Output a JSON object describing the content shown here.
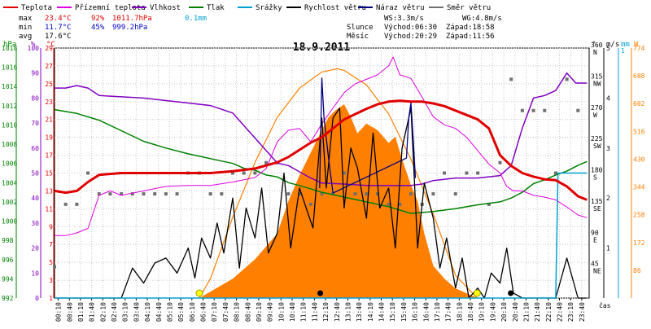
{
  "legend": [
    {
      "label": "Teplota",
      "color": "#e00000"
    },
    {
      "label": "Přízemní teplota",
      "color": "#e000e0"
    },
    {
      "label": "Vlhkost",
      "color": "#8000c0"
    },
    {
      "label": "Tlak",
      "color": "#008000"
    },
    {
      "label": "Srážky",
      "color": "#00a0d0"
    },
    {
      "label": "Rychlost větru",
      "color": "#000000"
    },
    {
      "label": "Náraz větru",
      "color": "#000080"
    },
    {
      "label": "Směr větru",
      "color": "#707070"
    }
  ],
  "stats": {
    "max": {
      "label": "max",
      "temp": "23.4°C",
      "hum": "92%",
      "press": "1011.7hPa",
      "rain": "0.1mm"
    },
    "min": {
      "label": "min",
      "temp": "11.7°C",
      "hum": "45%",
      "press": "999.2hPa"
    },
    "avg": {
      "label": "avg",
      "temp": "17.6°C"
    }
  },
  "wind_info": {
    "ws": "WS:3.3m/s",
    "wg": "WG:4.8m/s"
  },
  "sun_info": {
    "label": "Slunce",
    "rise": "Východ:06:30",
    "set": "Západ:18:58"
  },
  "moon_info": {
    "label": "Měsíc",
    "rise": "Východ:20:29",
    "set": "Západ:11:56"
  },
  "colors": {
    "temp": "#e00000",
    "ground": "#e000e0",
    "hum": "#8000c0",
    "press": "#008000",
    "rain": "#00a0d0",
    "wind": "#000000",
    "gust": "#000080",
    "dir": "#707070",
    "solar": "#ff8000",
    "axis": "#000000"
  },
  "chart_data": {
    "type": "line",
    "title": "18.9.2011",
    "xlabel": "čas",
    "x_ticks": [
      "00:10",
      "00:40",
      "01:10",
      "01:40",
      "02:10",
      "02:40",
      "03:10",
      "03:40",
      "04:10",
      "04:40",
      "05:10",
      "05:40",
      "06:10",
      "06:40",
      "07:10",
      "07:40",
      "08:10",
      "08:40",
      "09:10",
      "09:40",
      "10:10",
      "10:40",
      "11:10",
      "11:40",
      "12:10",
      "12:40",
      "13:10",
      "13:40",
      "14:10",
      "14:40",
      "15:10",
      "15:40",
      "16:10",
      "16:40",
      "17:10",
      "17:40",
      "18:10",
      "18:40",
      "19:10",
      "19:40",
      "20:10",
      "20:40",
      "21:10",
      "21:40",
      "22:10",
      "22:40",
      "23:10",
      "23:40"
    ],
    "axes": {
      "pressure": {
        "unit": "hPa",
        "ticks": [
          "1018",
          "1016",
          "1014",
          "1012",
          "1010",
          "1008",
          "1006",
          "1004",
          "1002",
          "1000",
          "998",
          "996",
          "994",
          "992"
        ],
        "range": [
          992,
          1018
        ]
      },
      "humidity": {
        "unit": "%",
        "ticks": [
          "100",
          "90",
          "80",
          "70",
          "60",
          "50",
          "40",
          "30",
          "20",
          "10",
          "0"
        ],
        "range": [
          0,
          100
        ]
      },
      "temperature": {
        "unit": "°C",
        "ticks": [
          "29",
          "27",
          "25",
          "23",
          "21",
          "19",
          "17",
          "15",
          "13",
          "11",
          "9",
          "7",
          "5",
          "3",
          "1"
        ],
        "range": [
          1,
          29
        ]
      },
      "direction": {
        "unit": "°",
        "ticks": [
          {
            "deg": "360",
            "dir": "N"
          },
          {
            "deg": "315",
            "dir": "NW"
          },
          {
            "deg": "270",
            "dir": "W"
          },
          {
            "deg": "225",
            "dir": "SW"
          },
          {
            "deg": "180",
            "dir": "S"
          },
          {
            "deg": "135",
            "dir": "SE"
          },
          {
            "deg": "90",
            "dir": "E"
          },
          {
            "deg": "45",
            "dir": "NE"
          },
          {
            "deg": "0",
            "dir": ""
          }
        ],
        "range": [
          0,
          360
        ]
      },
      "wind": {
        "unit": "m/s",
        "ticks": [
          "5",
          "4",
          "3",
          "2",
          "1"
        ],
        "range": [
          0,
          5
        ]
      },
      "rain": {
        "unit": "mm",
        "ticks": [
          "1"
        ],
        "range": [
          0,
          1
        ]
      },
      "solar": {
        "unit": "W",
        "ticks": [
          "774",
          "688",
          "602",
          "516",
          "430",
          "344",
          "258",
          "172",
          "86"
        ],
        "range": [
          0,
          774
        ]
      }
    },
    "series": [
      {
        "name": "Teplota",
        "axis": "temperature",
        "x": [
          0,
          0.5,
          1,
          1.5,
          2,
          3,
          4,
          5,
          6,
          7,
          8,
          9,
          10,
          10.5,
          11,
          11.5,
          12,
          12.5,
          13,
          13.5,
          14,
          14.5,
          15,
          15.5,
          16,
          16.5,
          17,
          17.5,
          18,
          18.5,
          19,
          19.5,
          20,
          20.5,
          21,
          21.5,
          22,
          22.5,
          23,
          23.5,
          23.9
        ],
        "values": [
          13,
          12.8,
          13,
          14,
          14.8,
          15,
          15,
          15,
          15,
          15,
          15.2,
          15.5,
          16.2,
          16.8,
          17.6,
          18.4,
          19,
          20,
          21,
          21.6,
          22.2,
          22.7,
          23,
          23.1,
          23,
          23,
          22.8,
          22.5,
          22,
          21.5,
          21,
          20,
          17,
          15.8,
          15,
          14.6,
          14.3,
          14.2,
          13.5,
          12.4,
          12
        ]
      },
      {
        "name": "Přízemní teplota",
        "axis": "temperature",
        "x": [
          0,
          0.5,
          1,
          1.5,
          2,
          2.5,
          3,
          4,
          5,
          6,
          7,
          8,
          9,
          9.5,
          10,
          10.5,
          11,
          11.5,
          12,
          12.5,
          13,
          13.5,
          14,
          14.5,
          15,
          15.2,
          15.5,
          16,
          16.5,
          17,
          17.5,
          18,
          18.5,
          19,
          19.5,
          20,
          20.3,
          20.6,
          21,
          21.5,
          22,
          22.5,
          23,
          23.5,
          23.9
        ],
        "values": [
          8,
          8,
          8.3,
          8.8,
          12.5,
          13,
          12.5,
          13,
          13.5,
          13.6,
          13.6,
          14,
          14.5,
          15.5,
          18.5,
          19.8,
          20,
          18.5,
          20.5,
          22.3,
          24,
          25,
          25.5,
          26,
          27,
          28,
          26,
          25.6,
          23.5,
          21.3,
          20.4,
          20,
          19,
          17.5,
          16,
          15,
          13.5,
          13,
          13,
          12.5,
          12.3,
          12,
          11.2,
          10.3,
          10
        ]
      },
      {
        "name": "Vlhkost",
        "axis": "humidity",
        "x": [
          0,
          0.5,
          1,
          1.5,
          2,
          3,
          4,
          5,
          6,
          7,
          8,
          8.5,
          9,
          9.5,
          10,
          10.5,
          11,
          11.5,
          12,
          13,
          14,
          15,
          16,
          16.5,
          17,
          18,
          19,
          20,
          20.5,
          21,
          21.5,
          22,
          22.5,
          23,
          23.4,
          23.9
        ],
        "values": [
          84,
          84,
          85,
          84,
          81,
          80.5,
          80,
          79,
          78,
          77,
          74,
          69,
          64,
          59,
          54,
          53,
          50.5,
          48,
          46,
          45.6,
          45,
          45,
          45,
          45.6,
          47,
          48,
          48,
          49,
          53,
          68,
          80,
          81,
          83,
          90,
          86,
          86
        ]
      },
      {
        "name": "Tlak",
        "axis": "pressure",
        "x": [
          0,
          1,
          2,
          3,
          4,
          5,
          6,
          7,
          8,
          8.5,
          9,
          9.5,
          10,
          10.5,
          11,
          12,
          13,
          14,
          15,
          16,
          17,
          18,
          19,
          20,
          20.5,
          21,
          21.5,
          22,
          22.5,
          23,
          23.5,
          23.9
        ],
        "values": [
          1011.6,
          1011.2,
          1010.5,
          1009.4,
          1008.3,
          1007.6,
          1007,
          1006.5,
          1006,
          1005.5,
          1005.3,
          1004.8,
          1004.6,
          1004,
          1003.7,
          1003,
          1002.5,
          1002,
          1001.5,
          1000.8,
          1001,
          1001.3,
          1001.7,
          1002,
          1002.4,
          1003,
          1003.9,
          1004.3,
          1004.8,
          1005.2,
          1005.8,
          1006.2
        ]
      },
      {
        "name": "Rychlost větru",
        "axis": "wind",
        "x": [
          0,
          1,
          2,
          3,
          3.5,
          4,
          4.5,
          5,
          5.5,
          6,
          6.3,
          6.6,
          7,
          7.3,
          7.6,
          8,
          8.3,
          8.6,
          9,
          9.3,
          9.6,
          10,
          10.3,
          10.6,
          11,
          11.3,
          11.6,
          12,
          12.2,
          12.5,
          12.8,
          13,
          13.3,
          13.6,
          14,
          14.3,
          14.6,
          15,
          15.3,
          15.6,
          16,
          16.3,
          16.6,
          17,
          17.3,
          17.6,
          18,
          18.3,
          18.6,
          19,
          19.3,
          19.6,
          20,
          20.3,
          20.6,
          21,
          21.5,
          22,
          22.5,
          23,
          23.5,
          23.9
        ],
        "values": [
          0,
          0,
          0,
          0,
          0.6,
          0.3,
          0.7,
          0.8,
          0.5,
          1.0,
          0.4,
          1.2,
          0.8,
          1.5,
          0.9,
          2.0,
          0.6,
          1.8,
          1.2,
          2.2,
          0.9,
          1.3,
          2.5,
          1.0,
          2.2,
          1.8,
          1.4,
          3.6,
          2.2,
          3.6,
          3.8,
          1.8,
          3.0,
          2.6,
          1.6,
          3.3,
          1.8,
          2.2,
          1.0,
          3.0,
          3.8,
          1.0,
          2.3,
          1.6,
          0.6,
          1.2,
          0.2,
          0.8,
          0,
          0.2,
          0,
          0.5,
          0.3,
          1.0,
          0.1,
          0,
          0,
          0,
          0,
          0.8,
          0,
          0
        ]
      },
      {
        "name": "Náraz větru",
        "axis": "wind",
        "x": [
          11.9,
          12,
          12.1,
          12.3,
          12.5,
          15.8,
          15.9,
          16,
          16.1,
          16.2
        ],
        "values": [
          2.2,
          4.4,
          3.6,
          2.8,
          2.1,
          2.8,
          3.6,
          3.9,
          3.2,
          2.4
        ]
      },
      {
        "name": "Srážky",
        "axis": "rain",
        "x": [
          0,
          22.5,
          22.6,
          23.9
        ],
        "values": [
          0,
          0,
          0.5,
          0.5
        ]
      }
    ],
    "solar_radiation": {
      "axis": "solar",
      "x": [
        6.5,
        7,
        8,
        9,
        10,
        10.5,
        11,
        11.5,
        12,
        12.3,
        12.6,
        13,
        13.3,
        13.6,
        14,
        14.5,
        15,
        15.3,
        15.6,
        16,
        16.3,
        16.6,
        17,
        17.5,
        18,
        18.5,
        19
      ],
      "values": [
        0,
        20,
        60,
        120,
        200,
        300,
        380,
        450,
        520,
        560,
        580,
        600,
        560,
        510,
        540,
        520,
        480,
        500,
        430,
        350,
        300,
        200,
        100,
        60,
        30,
        15,
        0
      ]
    },
    "sun_path": {
      "axis": "solar",
      "x": [
        6.5,
        7,
        8,
        9,
        10,
        11,
        12,
        12.7,
        13,
        14,
        15,
        16,
        17,
        18,
        18.97
      ],
      "values": [
        0,
        60,
        250,
        420,
        560,
        650,
        700,
        710,
        705,
        660,
        570,
        430,
        260,
        70,
        0
      ]
    },
    "wind_direction": {
      "axis": "direction",
      "x": [
        0,
        0.5,
        1,
        1.5,
        2,
        2.5,
        3,
        3.5,
        4,
        4.5,
        5,
        5.5,
        6,
        6.5,
        7,
        7.5,
        8,
        8.5,
        9,
        9.5,
        10,
        10.5,
        11,
        11.5,
        12,
        12.5,
        13,
        13.5,
        14,
        14.5,
        15,
        15.5,
        16,
        16.5,
        17,
        17.5,
        18,
        18.5,
        19,
        19.5,
        20,
        20.5,
        21,
        21.5,
        22,
        22.5,
        23,
        23.5
      ],
      "values": [
        45,
        135,
        135,
        180,
        150,
        150,
        150,
        150,
        150,
        150,
        150,
        150,
        180,
        180,
        150,
        150,
        180,
        180,
        180,
        195,
        195,
        150,
        150,
        135,
        150,
        150,
        180,
        150,
        150,
        150,
        135,
        135,
        150,
        135,
        150,
        180,
        150,
        180,
        180,
        135,
        195,
        315,
        270,
        270,
        270,
        180,
        315,
        270
      ]
    }
  }
}
